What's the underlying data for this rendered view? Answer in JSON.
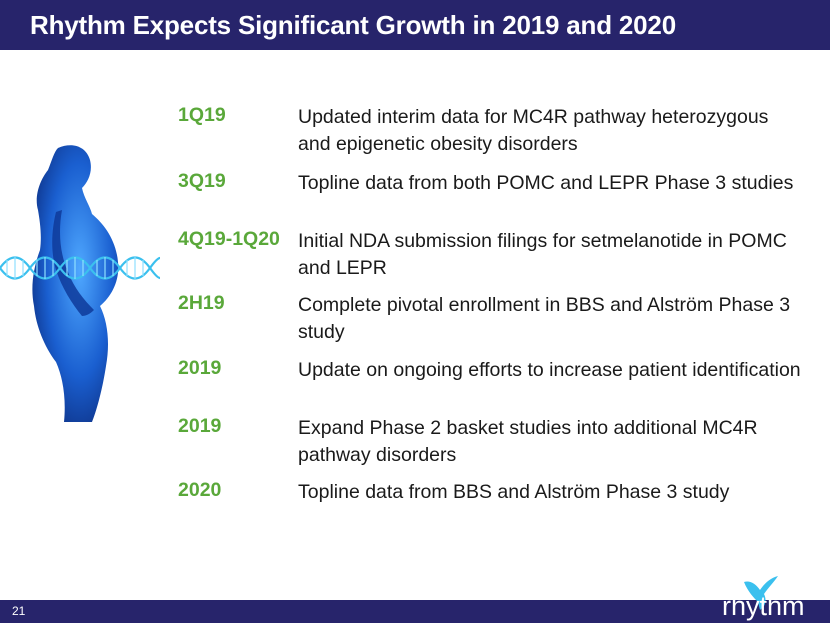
{
  "slide": {
    "title": "Rhythm Expects Significant Growth in 2019 and 2020",
    "page_number": "21",
    "logo_text": "rhythm"
  },
  "colors": {
    "title_bar": "#27246b",
    "period_text": "#5aa83a",
    "body_text": "#1a1a1a"
  },
  "milestones": [
    {
      "period": "1Q19",
      "description": "Updated interim data for MC4R pathway heterozygous and epigenetic obesity disorders"
    },
    {
      "period": "3Q19",
      "description": "Topline data from both POMC and LEPR Phase 3 studies"
    },
    {
      "period": "4Q19-1Q20",
      "description": "Initial NDA submission filings for setmelanotide in POMC and LEPR"
    },
    {
      "period": "2H19",
      "description": "Complete pivotal enrollment in BBS and Alström Phase 3 study"
    },
    {
      "period": "2019",
      "description": "Update on ongoing efforts to increase patient identification"
    },
    {
      "period": "2019",
      "description": "Expand Phase 2 basket studies into additional MC4R pathway disorders"
    },
    {
      "period": "2020",
      "description": "Topline data from BBS and Alström Phase 3 study"
    }
  ]
}
